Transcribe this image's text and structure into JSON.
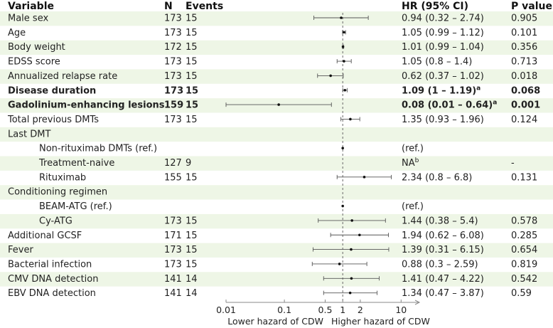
{
  "chart_data": {
    "type": "forest",
    "headers": {
      "variable": "Variable",
      "n": "N",
      "events": "Events",
      "hr": "HR (95% CI)",
      "p": "P value"
    },
    "x_scale": "log",
    "xlim": [
      0.01,
      20
    ],
    "x_ticks": [
      {
        "value": 0.01,
        "label": "0.01"
      },
      {
        "value": 0.1,
        "label": "0.1"
      },
      {
        "value": 0.5,
        "label": "0.5"
      },
      {
        "value": 1,
        "label": "1"
      },
      {
        "value": 2,
        "label": "2"
      },
      {
        "value": 10,
        "label": "10"
      }
    ],
    "reference_line": 1,
    "xlabel_left": "Lower hazard of CDW",
    "xlabel_right": "Higher hazard of CDW",
    "rows": [
      {
        "label": "Male sex",
        "indent": 0,
        "n": "173",
        "events": "15",
        "hr": 0.94,
        "lo": 0.32,
        "hi": 2.74,
        "hr_text": "0.94 (0.32 – 2.74)",
        "sup": "",
        "p": "0.905",
        "bold": false
      },
      {
        "label": "Age",
        "indent": 0,
        "n": "173",
        "events": "15",
        "hr": 1.05,
        "lo": 0.99,
        "hi": 1.12,
        "hr_text": "1.05 (0.99 – 1.12)",
        "sup": "",
        "p": "0.101",
        "bold": false
      },
      {
        "label": "Body weight",
        "indent": 0,
        "n": "172",
        "events": "15",
        "hr": 1.01,
        "lo": 0.99,
        "hi": 1.04,
        "hr_text": "1.01 (0.99 – 1.04)",
        "sup": "",
        "p": "0.356",
        "bold": false
      },
      {
        "label": "EDSS score",
        "indent": 0,
        "n": "173",
        "events": "15",
        "hr": 1.05,
        "lo": 0.8,
        "hi": 1.4,
        "hr_text": "1.05 (0.8 – 1.4)",
        "sup": "",
        "p": "0.713",
        "bold": false
      },
      {
        "label": "Annualized relapse rate",
        "indent": 0,
        "n": "173",
        "events": "15",
        "hr": 0.62,
        "lo": 0.37,
        "hi": 1.02,
        "hr_text": "0.62 (0.37 – 1.02)",
        "sup": "",
        "p": "0.018",
        "bold": false
      },
      {
        "label": "Disease duration",
        "indent": 0,
        "n": "173",
        "events": "15",
        "hr": 1.09,
        "lo": 1.0,
        "hi": 1.19,
        "hr_text": "1.09 (1 – 1.19)",
        "sup": "a",
        "p": "0.068",
        "bold": true
      },
      {
        "label": "Gadolinium-enhancing lesions",
        "indent": 0,
        "n": "159",
        "events": "15",
        "hr": 0.08,
        "lo": 0.01,
        "hi": 0.64,
        "hr_text": "0.08 (0.01 – 0.64)",
        "sup": "a",
        "p": "0.001",
        "bold": true
      },
      {
        "label": "Total previous DMTs",
        "indent": 0,
        "n": "173",
        "events": "15",
        "hr": 1.35,
        "lo": 0.93,
        "hi": 1.96,
        "hr_text": "1.35 (0.93 – 1.96)",
        "sup": "",
        "p": "0.124",
        "bold": false
      },
      {
        "label": "Last DMT",
        "indent": 0,
        "n": "",
        "events": "",
        "hr": null,
        "lo": null,
        "hi": null,
        "hr_text": "",
        "sup": "",
        "p": "",
        "bold": false
      },
      {
        "label": "Non-rituximab DMTs (ref.)",
        "indent": 1,
        "n": "",
        "events": "",
        "hr": 1,
        "lo": null,
        "hi": null,
        "hr_text": "(ref.)",
        "sup": "",
        "p": "",
        "bold": false
      },
      {
        "label": "Treatment-naive",
        "indent": 1,
        "n": "127",
        "events": "9",
        "hr": null,
        "lo": null,
        "hi": null,
        "hr_text": "NA",
        "sup": "b",
        "p": "-",
        "bold": false
      },
      {
        "label": "Rituximab",
        "indent": 1,
        "n": "155",
        "events": "15",
        "hr": 2.34,
        "lo": 0.8,
        "hi": 6.8,
        "hr_text": "2.34 (0.8 – 6.8)",
        "sup": "",
        "p": "0.131",
        "bold": false
      },
      {
        "label": "Conditioning regimen",
        "indent": 0,
        "n": "",
        "events": "",
        "hr": null,
        "lo": null,
        "hi": null,
        "hr_text": "",
        "sup": "",
        "p": "",
        "bold": false
      },
      {
        "label": "BEAM-ATG (ref.)",
        "indent": 1,
        "n": "",
        "events": "",
        "hr": 1,
        "lo": null,
        "hi": null,
        "hr_text": "(ref.)",
        "sup": "",
        "p": "",
        "bold": false
      },
      {
        "label": "Cy-ATG",
        "indent": 1,
        "n": "173",
        "events": "15",
        "hr": 1.44,
        "lo": 0.38,
        "hi": 5.4,
        "hr_text": "1.44 (0.38 – 5.4)",
        "sup": "",
        "p": "0.578",
        "bold": false
      },
      {
        "label": "Additional GCSF",
        "indent": 0,
        "n": "171",
        "events": "15",
        "hr": 1.94,
        "lo": 0.62,
        "hi": 6.08,
        "hr_text": "1.94 (0.62 – 6.08)",
        "sup": "",
        "p": "0.285",
        "bold": false
      },
      {
        "label": "Fever",
        "indent": 0,
        "n": "173",
        "events": "15",
        "hr": 1.39,
        "lo": 0.31,
        "hi": 6.15,
        "hr_text": "1.39 (0.31 – 6.15)",
        "sup": "",
        "p": "0.654",
        "bold": false
      },
      {
        "label": "Bacterial infection",
        "indent": 0,
        "n": "173",
        "events": "15",
        "hr": 0.88,
        "lo": 0.3,
        "hi": 2.59,
        "hr_text": "0.88 (0.3 – 2.59)",
        "sup": "",
        "p": "0.819",
        "bold": false
      },
      {
        "label": "CMV DNA detection",
        "indent": 0,
        "n": "141",
        "events": "14",
        "hr": 1.41,
        "lo": 0.47,
        "hi": 4.22,
        "hr_text": "1.41 (0.47 – 4.22)",
        "sup": "",
        "p": "0.542",
        "bold": false
      },
      {
        "label": "EBV DNA detection",
        "indent": 0,
        "n": "141",
        "events": "14",
        "hr": 1.34,
        "lo": 0.47,
        "hi": 3.87,
        "hr_text": "1.34 (0.47 – 3.87)",
        "sup": "",
        "p": "0.59",
        "bold": false
      }
    ],
    "colors": {
      "stripe": "#eef6e6",
      "text": "#222222",
      "line": "#555555",
      "point": "#111111"
    }
  }
}
